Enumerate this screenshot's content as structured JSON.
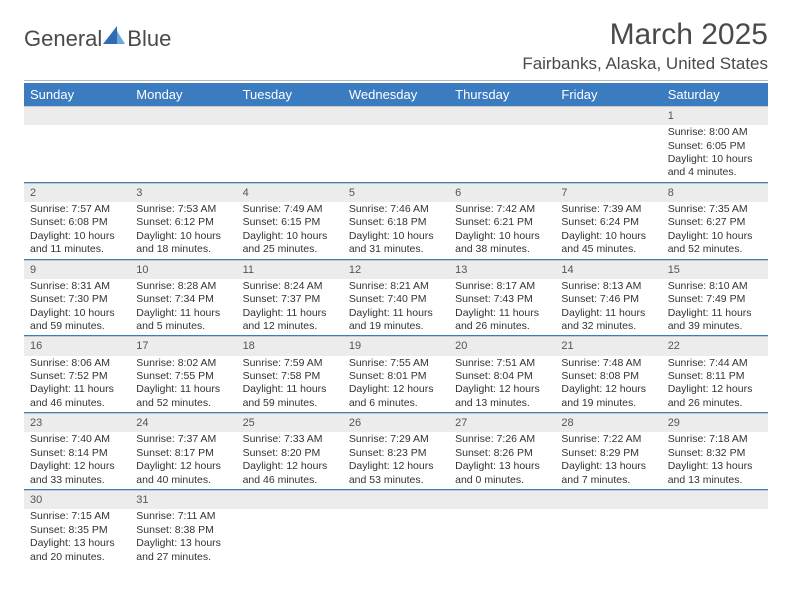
{
  "logo": {
    "part1": "General",
    "part2": "Blue"
  },
  "title": "March 2025",
  "location": "Fairbanks, Alaska, United States",
  "colors": {
    "header_bg": "#3b7bbf",
    "header_text": "#ffffff",
    "daynum_bg": "#ececec",
    "row_border": "#3b7bbf",
    "text": "#333333",
    "logo_triangle": "#2f6db3"
  },
  "weekdays": [
    "Sunday",
    "Monday",
    "Tuesday",
    "Wednesday",
    "Thursday",
    "Friday",
    "Saturday"
  ],
  "labels": {
    "sunrise": "Sunrise:",
    "sunset": "Sunset:",
    "daylight": "Daylight:"
  },
  "weeks": [
    [
      null,
      null,
      null,
      null,
      null,
      null,
      {
        "n": "1",
        "sunrise": "8:00 AM",
        "sunset": "6:05 PM",
        "daylight": "10 hours and 4 minutes."
      }
    ],
    [
      {
        "n": "2",
        "sunrise": "7:57 AM",
        "sunset": "6:08 PM",
        "daylight": "10 hours and 11 minutes."
      },
      {
        "n": "3",
        "sunrise": "7:53 AM",
        "sunset": "6:12 PM",
        "daylight": "10 hours and 18 minutes."
      },
      {
        "n": "4",
        "sunrise": "7:49 AM",
        "sunset": "6:15 PM",
        "daylight": "10 hours and 25 minutes."
      },
      {
        "n": "5",
        "sunrise": "7:46 AM",
        "sunset": "6:18 PM",
        "daylight": "10 hours and 31 minutes."
      },
      {
        "n": "6",
        "sunrise": "7:42 AM",
        "sunset": "6:21 PM",
        "daylight": "10 hours and 38 minutes."
      },
      {
        "n": "7",
        "sunrise": "7:39 AM",
        "sunset": "6:24 PM",
        "daylight": "10 hours and 45 minutes."
      },
      {
        "n": "8",
        "sunrise": "7:35 AM",
        "sunset": "6:27 PM",
        "daylight": "10 hours and 52 minutes."
      }
    ],
    [
      {
        "n": "9",
        "sunrise": "8:31 AM",
        "sunset": "7:30 PM",
        "daylight": "10 hours and 59 minutes."
      },
      {
        "n": "10",
        "sunrise": "8:28 AM",
        "sunset": "7:34 PM",
        "daylight": "11 hours and 5 minutes."
      },
      {
        "n": "11",
        "sunrise": "8:24 AM",
        "sunset": "7:37 PM",
        "daylight": "11 hours and 12 minutes."
      },
      {
        "n": "12",
        "sunrise": "8:21 AM",
        "sunset": "7:40 PM",
        "daylight": "11 hours and 19 minutes."
      },
      {
        "n": "13",
        "sunrise": "8:17 AM",
        "sunset": "7:43 PM",
        "daylight": "11 hours and 26 minutes."
      },
      {
        "n": "14",
        "sunrise": "8:13 AM",
        "sunset": "7:46 PM",
        "daylight": "11 hours and 32 minutes."
      },
      {
        "n": "15",
        "sunrise": "8:10 AM",
        "sunset": "7:49 PM",
        "daylight": "11 hours and 39 minutes."
      }
    ],
    [
      {
        "n": "16",
        "sunrise": "8:06 AM",
        "sunset": "7:52 PM",
        "daylight": "11 hours and 46 minutes."
      },
      {
        "n": "17",
        "sunrise": "8:02 AM",
        "sunset": "7:55 PM",
        "daylight": "11 hours and 52 minutes."
      },
      {
        "n": "18",
        "sunrise": "7:59 AM",
        "sunset": "7:58 PM",
        "daylight": "11 hours and 59 minutes."
      },
      {
        "n": "19",
        "sunrise": "7:55 AM",
        "sunset": "8:01 PM",
        "daylight": "12 hours and 6 minutes."
      },
      {
        "n": "20",
        "sunrise": "7:51 AM",
        "sunset": "8:04 PM",
        "daylight": "12 hours and 13 minutes."
      },
      {
        "n": "21",
        "sunrise": "7:48 AM",
        "sunset": "8:08 PM",
        "daylight": "12 hours and 19 minutes."
      },
      {
        "n": "22",
        "sunrise": "7:44 AM",
        "sunset": "8:11 PM",
        "daylight": "12 hours and 26 minutes."
      }
    ],
    [
      {
        "n": "23",
        "sunrise": "7:40 AM",
        "sunset": "8:14 PM",
        "daylight": "12 hours and 33 minutes."
      },
      {
        "n": "24",
        "sunrise": "7:37 AM",
        "sunset": "8:17 PM",
        "daylight": "12 hours and 40 minutes."
      },
      {
        "n": "25",
        "sunrise": "7:33 AM",
        "sunset": "8:20 PM",
        "daylight": "12 hours and 46 minutes."
      },
      {
        "n": "26",
        "sunrise": "7:29 AM",
        "sunset": "8:23 PM",
        "daylight": "12 hours and 53 minutes."
      },
      {
        "n": "27",
        "sunrise": "7:26 AM",
        "sunset": "8:26 PM",
        "daylight": "13 hours and 0 minutes."
      },
      {
        "n": "28",
        "sunrise": "7:22 AM",
        "sunset": "8:29 PM",
        "daylight": "13 hours and 7 minutes."
      },
      {
        "n": "29",
        "sunrise": "7:18 AM",
        "sunset": "8:32 PM",
        "daylight": "13 hours and 13 minutes."
      }
    ],
    [
      {
        "n": "30",
        "sunrise": "7:15 AM",
        "sunset": "8:35 PM",
        "daylight": "13 hours and 20 minutes."
      },
      {
        "n": "31",
        "sunrise": "7:11 AM",
        "sunset": "8:38 PM",
        "daylight": "13 hours and 27 minutes."
      },
      null,
      null,
      null,
      null,
      null
    ]
  ]
}
